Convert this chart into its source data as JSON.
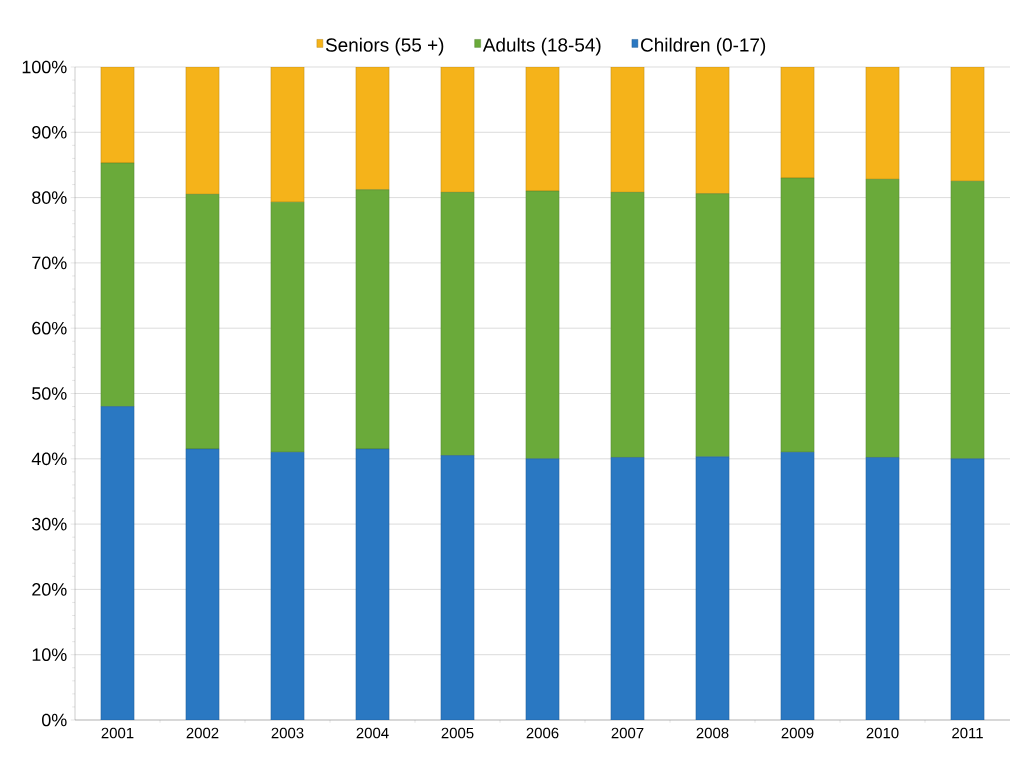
{
  "chart_data": {
    "type": "bar",
    "stacked": true,
    "categories": [
      "2001",
      "2002",
      "2003",
      "2004",
      "2005",
      "2006",
      "2007",
      "2008",
      "2009",
      "2010",
      "2011"
    ],
    "series": [
      {
        "name": "Children (0-17)",
        "color": "#2a78c2",
        "values": [
          48,
          41.5,
          41,
          41.5,
          40.5,
          40,
          40.2,
          40.3,
          41,
          40.2,
          40
        ]
      },
      {
        "name": "Adults (18-54)",
        "color": "#6aaa3a",
        "values": [
          37.3,
          39,
          38.3,
          39.7,
          40.3,
          41,
          40.6,
          40.3,
          42,
          42.6,
          42.5
        ]
      },
      {
        "name": "Seniors (55 +)",
        "color": "#f5b31a",
        "values": [
          14.7,
          19.5,
          20.7,
          18.8,
          19.2,
          19,
          19.2,
          19.4,
          17,
          17.2,
          17.5
        ]
      }
    ],
    "ylim": [
      0,
      100
    ],
    "yticks": [
      {
        "value": 0,
        "label": "0%"
      },
      {
        "value": 10,
        "label": "10%"
      },
      {
        "value": 20,
        "label": "20%"
      },
      {
        "value": 30,
        "label": "30%"
      },
      {
        "value": 40,
        "label": "40%"
      },
      {
        "value": 50,
        "label": "50%"
      },
      {
        "value": 60,
        "label": "60%"
      },
      {
        "value": 70,
        "label": "70%"
      },
      {
        "value": 80,
        "label": "80%"
      },
      {
        "value": 90,
        "label": "90%"
      },
      {
        "value": 100,
        "label": "100%"
      }
    ],
    "grid": "y",
    "legend": "top"
  }
}
